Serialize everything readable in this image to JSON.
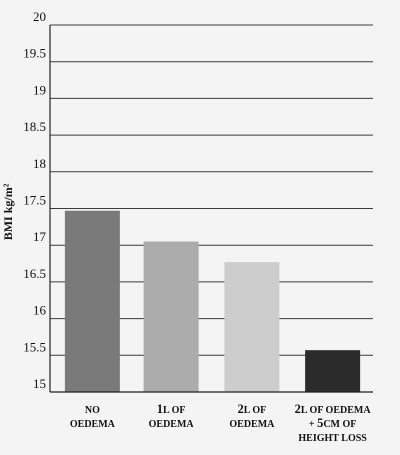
{
  "chart_data": {
    "type": "bar",
    "title": "",
    "xlabel": "",
    "ylabel": "BMI kg/m²",
    "ylim": [
      15,
      20
    ],
    "yticks": [
      "15",
      "15.5",
      "16",
      "16.5",
      "17",
      "17.5",
      "18",
      "18.5",
      "19",
      "19.5",
      "20"
    ],
    "grid": true,
    "categories": [
      "NO OEDEMA",
      "1L OF OEDEMA",
      "2L OF OEDEMA",
      "2L OF OEDEMA + 5CM OF HEIGHT LOSS"
    ],
    "category_lines": [
      [
        [
          "NO",
          false
        ]
      ],
      [
        [
          "1",
          true
        ],
        [
          "L OF",
          false
        ]
      ],
      [
        [
          "2",
          true
        ],
        [
          "L OF",
          false
        ]
      ],
      [
        [
          "2",
          true
        ],
        [
          "L OF OEDEMA",
          false
        ]
      ]
    ],
    "category_lines_2": [
      [
        [
          "OEDEMA",
          false
        ]
      ],
      [
        [
          "OEDEMA",
          false
        ]
      ],
      [
        [
          "OEDEMA",
          false
        ]
      ],
      [
        [
          "+ ",
          false
        ],
        [
          "5",
          true
        ],
        [
          "CM OF",
          false
        ]
      ]
    ],
    "category_lines_3": [
      [],
      [],
      [],
      [
        [
          "HEIGHT LOSS",
          false
        ]
      ]
    ],
    "values": [
      17.47,
      17.05,
      16.77,
      15.57
    ],
    "colors": [
      "#7a7a7a",
      "#acacac",
      "#cdcdcd",
      "#2b2b2b"
    ]
  }
}
